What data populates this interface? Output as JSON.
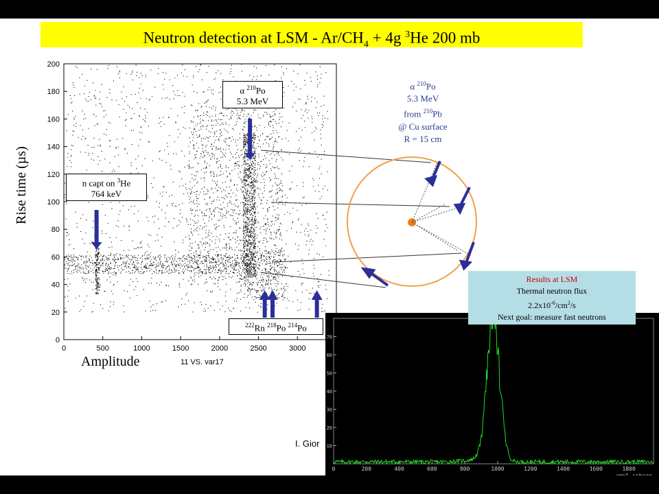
{
  "title": {
    "main": "Neutron detection at LSM - Ar/CH",
    "sub4": "4",
    "mid": " + 4g ",
    "sup3": "3",
    "end": "He 200 mb"
  },
  "scatter_panel": {
    "ylabel": "Rise time (µs)",
    "xlabel": "Amplitude",
    "note": "11 VS. var17",
    "box_ncapt": {
      "line1a": "n capt on ",
      "sup": "3",
      "line1b": "He",
      "line2": "764 keV"
    },
    "box_alpha": {
      "sym": "α ",
      "sup": "210",
      "el": "Po",
      "line2": "5.3 MeV"
    },
    "box_rn": {
      "s1": "222",
      "e1": "Rn ",
      "s2": "218",
      "e2": "Po ",
      "s3": "214",
      "e3": "Po"
    }
  },
  "po_description": {
    "line1_sym": "α ",
    "line1_sup": "210",
    "line1_el": "Po",
    "line2": "5.3 MeV",
    "line3a": "from ",
    "line3_sup": "210",
    "line3b": "Pb",
    "line4": "@ Cu surface",
    "line5": "R = 15 cm"
  },
  "results": {
    "heading": "Results at LSM",
    "line1": "Thermal neutron flux",
    "line2_pre": "2.2x10",
    "line2_exp": "-6",
    "line2_mid": "/cm",
    "line2_exp2": "2",
    "line2_post": "/s",
    "line3": "Next goal: measure fast neutrons"
  },
  "credit": "I. Gior",
  "hist_xlabel": "ampl-sphere",
  "colors": {
    "title_bg": "#ffff00",
    "arrow": "#2b2f9a",
    "circle": "#f0a04a",
    "hist_line": "#22dd22",
    "results_bg": "#b5dde6"
  },
  "chart_data": [
    {
      "type": "scatter",
      "xlabel": "Amplitude",
      "ylabel": "Rise time (µs)",
      "xlim": [
        0,
        3500
      ],
      "ylim": [
        0,
        200
      ],
      "xticks": [
        0,
        500,
        1000,
        1500,
        2000,
        2500,
        3000
      ],
      "yticks": [
        0,
        20,
        40,
        60,
        80,
        100,
        120,
        140,
        160,
        180,
        200
      ],
      "grid": false,
      "arrows_at_x": [
        420,
        2390,
        2580,
        2680,
        3250
      ],
      "clusters": [
        {
          "name": "n capt on 3He 764 keV",
          "x_center": 420,
          "y_range": [
            35,
            70
          ]
        },
        {
          "name": "alpha 210Po 5.3 MeV",
          "x_center": 2380,
          "y_range": [
            50,
            150
          ]
        },
        {
          "name": "baseline band",
          "x_range": [
            0,
            2400
          ],
          "y_center": 55
        }
      ]
    },
    {
      "type": "line",
      "xlabel": "ampl-sphere",
      "xlim": [
        0,
        1950
      ],
      "ylim": [
        0,
        80
      ],
      "xticks": [
        0,
        200,
        400,
        600,
        800,
        1000,
        1200,
        1400,
        1600,
        1800
      ],
      "yticks": [
        10,
        20,
        30,
        40,
        50,
        60,
        70
      ],
      "peak": {
        "x": 975,
        "y": 76
      }
    }
  ]
}
